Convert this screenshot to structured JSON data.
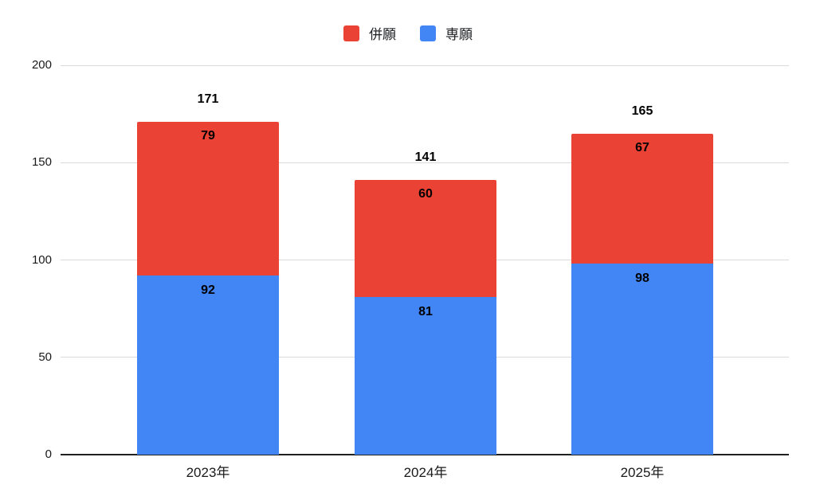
{
  "chart_data": {
    "type": "bar",
    "variant": "stacked",
    "categories": [
      "2023年",
      "2024年",
      "2025年"
    ],
    "series": [
      {
        "name": "専願",
        "color": "#4285F4",
        "values": [
          92,
          81,
          98
        ]
      },
      {
        "name": "併願",
        "color": "#EA4335",
        "values": [
          79,
          60,
          67
        ]
      }
    ],
    "totals": [
      171,
      141,
      165
    ],
    "title": "",
    "xlabel": "",
    "ylabel": "",
    "ylim": [
      0,
      200
    ],
    "yticks": [
      0,
      50,
      100,
      150,
      200
    ],
    "grid": true,
    "legend_position": "top"
  },
  "legend": {
    "items": [
      {
        "label": "併願",
        "color": "#EA4335"
      },
      {
        "label": "専願",
        "color": "#4285F4"
      }
    ]
  },
  "colors": {
    "gridline": "#dadada",
    "axis": "#212121",
    "label_text": "#000000"
  }
}
